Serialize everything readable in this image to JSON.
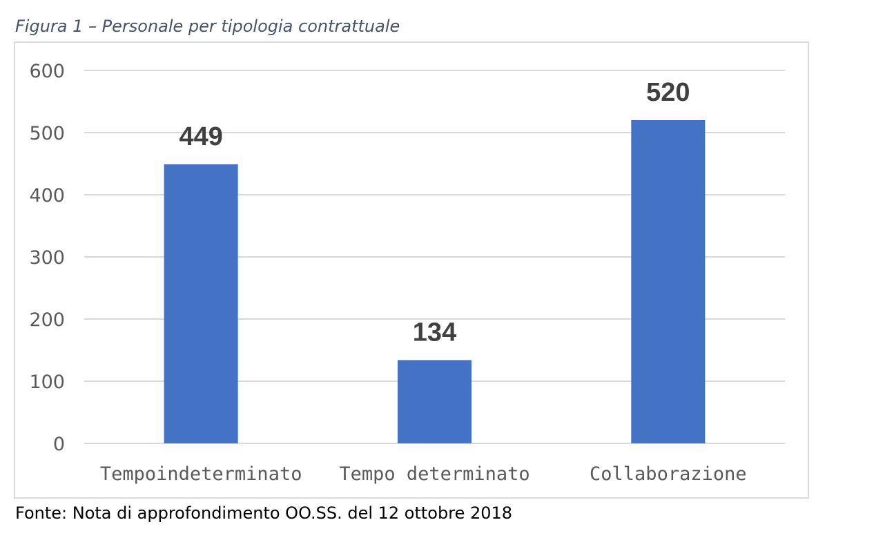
{
  "figure": {
    "caption": "Figura 1 – Personale per tipologia contrattuale",
    "source": "Fonte: Nota di approfondimento OO.SS. del 12 ottobre 2018"
  },
  "chart_data": {
    "type": "bar",
    "title": "",
    "xlabel": "",
    "ylabel": "",
    "categories": [
      "Tempoindeterminato",
      "Tempo determinato",
      "Collaborazione"
    ],
    "values": [
      449,
      134,
      520
    ],
    "data_labels": [
      "449",
      "134",
      "520"
    ],
    "ylim": [
      0,
      600
    ],
    "yticks": [
      0,
      100,
      200,
      300,
      400,
      500,
      600
    ],
    "grid": true,
    "legend": "none",
    "bar_color": "#4472c4"
  }
}
